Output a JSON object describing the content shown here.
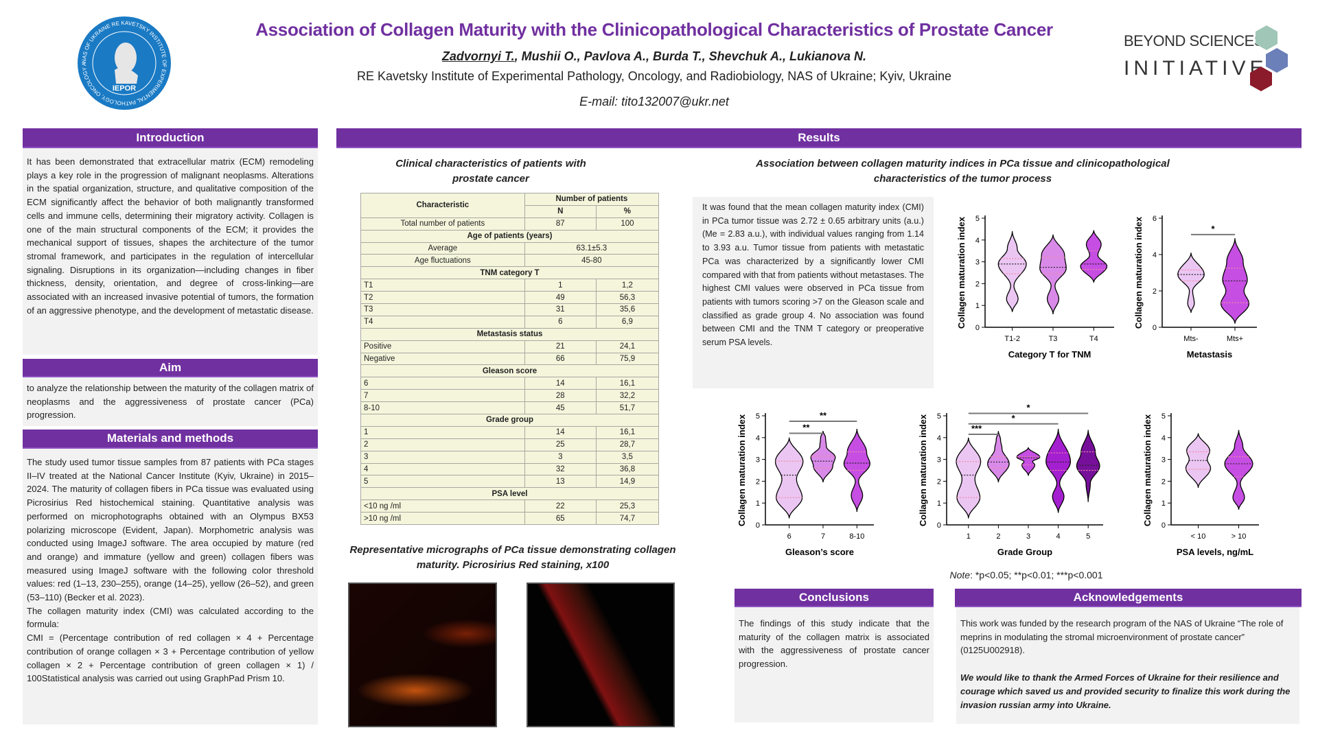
{
  "header": {
    "title": "Association of Collagen Maturity with the Clinicopathological Characteristics of Prostate Cancer",
    "first_author": "Zadvornyi T.",
    "other_authors": ", Mushii O., Pavlova A., Burda T., Shevchuk A., Lukianova N.",
    "affiliation": "RE Kavetsky Institute of Experimental Pathology, Oncology, and Radiobiology,  NAS of Ukraine; Kyiv, Ukraine",
    "email": "E-mail: tito132007@ukr.net",
    "left_logo_text": "NAS OF UKRAINE RE KAVETSKY INSTITUTE OF EXPERIMENTAL PATHOLOGY, ONCOLOGY AND RADIOBIOLOGY",
    "left_logo_abbr": "IEPOR",
    "right_logo_line1": "BEYOND SCIENCES",
    "right_logo_line2": "INITIATIVE"
  },
  "introduction": {
    "title": "Introduction",
    "text": "It has been demonstrated that extracellular matrix (ECM) remodeling plays a key role in the progression of malignant neoplasms. Alterations in the spatial organization, structure, and qualitative composition of the ECM significantly affect the behavior of both malignantly transformed cells and immune cells, determining their migratory activity. Collagen is one of the main structural components of the ECM; it provides the mechanical support of tissues, shapes the architecture of the tumor stromal framework, and participates in the regulation of intercellular signaling. Disruptions in its organization—including changes in fiber thickness, density, orientation, and degree of cross-linking—are associated with an increased invasive potential of tumors, the formation of an aggressive phenotype, and the development of metastatic disease."
  },
  "aim": {
    "title": "Aim",
    "text": "to analyze the relationship between the maturity of the collagen matrix of neoplasms and the aggressiveness of prostate cancer (PCa) progression."
  },
  "methods": {
    "title": "Materials and methods",
    "p1": "The study used tumor tissue samples from 87 patients with PCa stages II–IV treated at the National Cancer Institute (Kyiv, Ukraine) in 2015–2024. The maturity of collagen fibers in PCa tissue was evaluated using Picrosirius Red histochemical staining. Quantitative analysis was performed on microphotographs obtained with an Olympus BX53 polarizing microscope (Evident, Japan). Morphometric analysis was conducted using ImageJ software. The area occupied by mature (red and orange) and immature (yellow and green) collagen fibers was measured using ImageJ software with the following color threshold values: red (1–13, 230–255), orange (14–25), yellow (26–52), and green (53–110) (Becker et al. 2023).",
    "p2": "The collagen maturity index (CMI) was calculated according to the formula:",
    "p3": "CMI = (Percentage contribution of red collagen × 4 + Percentage contribution of orange collagen × 3 + Percentage contribution of yellow collagen × 2 + Percentage contribution of green collagen × 1) / 100Statistical analysis was carried out using GraphPad Prism 10."
  },
  "results": {
    "title": "Results",
    "table_caption": "Clinical characteristics of patients with prostate cancer",
    "table": {
      "col_char": "Characteristic",
      "col_group": "Number of patients",
      "col_n": "N",
      "col_pct": "%",
      "total": {
        "label": "Total number of patients",
        "n": "87",
        "pct": "100"
      },
      "age": {
        "title": "Age of patients (years)",
        "avg_label": "Average",
        "avg": "63.1±5.3",
        "range_label": "Age fluctuations",
        "range": "45-80"
      },
      "sections": [
        {
          "title": "TNM category T",
          "rows": [
            [
              "T1",
              "1",
              "1,2"
            ],
            [
              "T2",
              "49",
              "56,3"
            ],
            [
              "T3",
              "31",
              "35,6"
            ],
            [
              "T4",
              "6",
              "6,9"
            ]
          ]
        },
        {
          "title": "Metastasis status",
          "rows": [
            [
              "Positive",
              "21",
              "24,1"
            ],
            [
              "Negative",
              "66",
              "75,9"
            ]
          ]
        },
        {
          "title": "Gleason score",
          "rows": [
            [
              "6",
              "14",
              "16,1"
            ],
            [
              "7",
              "28",
              "32,2"
            ],
            [
              "8-10",
              "45",
              "51,7"
            ]
          ]
        },
        {
          "title": "Grade group",
          "rows": [
            [
              "1",
              "14",
              "16,1"
            ],
            [
              "2",
              "25",
              "28,7"
            ],
            [
              "3",
              "3",
              "3,5"
            ],
            [
              "4",
              "32",
              "36,8"
            ],
            [
              "5",
              "13",
              "14,9"
            ]
          ]
        },
        {
          "title": "PSA level",
          "rows": [
            [
              "<10 ng /ml",
              "22",
              "25,3"
            ],
            [
              ">10 ng /ml",
              "65",
              "74,7"
            ]
          ]
        }
      ]
    },
    "micro_caption": "Representative micrographs of PCa tissue demonstrating  collagen maturity. Picrosirius Red staining, x100",
    "assoc_title": "Association between collagen maturity indices in PCa tissue and clinicopathological characteristics of the tumor process",
    "assoc_text": "It was found that the mean collagen maturity index (CMI) in PCa tumor tissue was 2.72 ± 0.65 arbitrary units (a.u.) (Me = 2.83 a.u.), with individual values ranging from 1.14 to 3.93 a.u. Tumor tissue from patients with metastatic PCa was characterized by a significantly lower CMI compared with that from patients without metastases. The highest CMI values were observed in PCa tissue from patients with tumors scoring >7 on the Gleason scale and classified as grade group 4. No association was found between CMI and the TNM T category or preoperative serum PSA levels.",
    "note_label": "Note",
    "note_text": ": *p<0.05; **p<0.01; ***p<0.001"
  },
  "conclusions": {
    "title": "Conclusions",
    "text": "The findings of this study indicate that the maturity of the collagen matrix is associated with the aggressiveness of prostate cancer progression."
  },
  "acknowledgements": {
    "title": "Acknowledgements",
    "text": "This work was funded by the research program of the NAS of Ukraine “The role of meprins in modulating the stromal microenvironment of prostate cancer” (0125U002918).",
    "thanks": "We would like to thank the Armed Forces of Ukraine for their resilience and courage which saved us and provided security to finalize this work during the  invasion russian army into Ukraine."
  },
  "colors": {
    "purple": "#7030a0",
    "v1": "#ebc6f3",
    "v2": "#d98ae9",
    "v3": "#c64ee3",
    "v4": "#a41fcf",
    "v5": "#76109a"
  },
  "chart_data": [
    {
      "type": "violin",
      "id": "tnm",
      "ylabel": "Collagen maturation index",
      "xlabel": "Category T for TNM",
      "ylim": [
        0,
        5
      ],
      "yticks": [
        0,
        1,
        2,
        3,
        4,
        5
      ],
      "groups": [
        {
          "name": "T1-2",
          "min": 0.7,
          "max": 4.4,
          "median": 2.9,
          "q1": 2.45,
          "q3": 3.15,
          "color": "v1",
          "density": [
            [
              0.7,
              0
            ],
            [
              1.3,
              0.35
            ],
            [
              1.9,
              0.1
            ],
            [
              2.9,
              0.85
            ],
            [
              3.6,
              0.3
            ],
            [
              4.4,
              0
            ]
          ]
        },
        {
          "name": "T3",
          "min": 0.6,
          "max": 4.25,
          "median": 2.75,
          "q1": 2.45,
          "q3": 3.2,
          "color": "v2",
          "density": [
            [
              0.6,
              0
            ],
            [
              1.3,
              0.35
            ],
            [
              1.9,
              0.12
            ],
            [
              2.7,
              0.8
            ],
            [
              3.3,
              0.7
            ],
            [
              4.25,
              0
            ]
          ]
        },
        {
          "name": "T4",
          "min": 2.05,
          "max": 4.45,
          "median": 2.9,
          "q1": 2.65,
          "q3": 3.5,
          "color": "v3",
          "density": [
            [
              2.05,
              0
            ],
            [
              2.8,
              0.8
            ],
            [
              3.3,
              0.25
            ],
            [
              3.8,
              0.45
            ],
            [
              4.45,
              0
            ]
          ]
        }
      ],
      "significance": []
    },
    {
      "type": "violin",
      "id": "mts",
      "ylabel": "Collagen maturation index",
      "xlabel": "Metastasis",
      "ylim": [
        0,
        6
      ],
      "yticks": [
        0,
        2,
        4,
        6
      ],
      "groups": [
        {
          "name": "Mts-",
          "min": 0.8,
          "max": 4.1,
          "median": 2.9,
          "q1": 2.55,
          "q3": 3.15,
          "color": "v1",
          "density": [
            [
              0.8,
              0
            ],
            [
              1.3,
              0.2
            ],
            [
              2.0,
              0.1
            ],
            [
              2.9,
              0.8
            ],
            [
              4.1,
              0
            ]
          ]
        },
        {
          "name": "Mts+",
          "min": 0.2,
          "max": 4.9,
          "median": 2.55,
          "q1": 1.35,
          "q3": 3.25,
          "color": "v3",
          "density": [
            [
              0.2,
              0
            ],
            [
              1.3,
              0.85
            ],
            [
              2.0,
              0.55
            ],
            [
              2.6,
              0.75
            ],
            [
              3.6,
              0.5
            ],
            [
              4.9,
              0
            ]
          ]
        }
      ],
      "significance": [
        {
          "from": 0,
          "to": 1,
          "label": "*"
        }
      ]
    },
    {
      "type": "violin",
      "id": "gleason",
      "ylabel": "Collagen maturation index",
      "xlabel": "Gleason’s score",
      "ylim": [
        0,
        5
      ],
      "yticks": [
        0,
        1,
        2,
        3,
        4,
        5
      ],
      "groups": [
        {
          "name": "6",
          "min": 0.3,
          "max": 4.0,
          "median": 2.28,
          "q1": 1.25,
          "q3": 2.92,
          "color": "v1",
          "density": [
            [
              0.3,
              0
            ],
            [
              1.25,
              0.8
            ],
            [
              2.1,
              0.45
            ],
            [
              2.9,
              0.85
            ],
            [
              4.0,
              0
            ]
          ]
        },
        {
          "name": "7",
          "min": 1.95,
          "max": 4.3,
          "median": 2.92,
          "q1": 2.6,
          "q3": 3.15,
          "color": "v2",
          "density": [
            [
              1.95,
              0
            ],
            [
              2.7,
              0.6
            ],
            [
              3.1,
              0.75
            ],
            [
              3.6,
              0.2
            ],
            [
              4.0,
              0.15
            ],
            [
              4.3,
              0
            ]
          ]
        },
        {
          "name": "8-10",
          "min": 0.6,
          "max": 4.4,
          "median": 2.83,
          "q1": 2.5,
          "q3": 3.35,
          "color": "v3",
          "density": [
            [
              0.6,
              0
            ],
            [
              1.35,
              0.35
            ],
            [
              2.0,
              0.1
            ],
            [
              2.8,
              0.8
            ],
            [
              3.3,
              0.6
            ],
            [
              4.4,
              0
            ]
          ]
        }
      ],
      "significance": [
        {
          "from": 0,
          "to": 1,
          "label": "**"
        },
        {
          "from": 0,
          "to": 2,
          "label": "**"
        }
      ]
    },
    {
      "type": "violin",
      "id": "grade",
      "ylabel": "Collagen maturation index",
      "xlabel": "Grade Group",
      "ylim": [
        0,
        5
      ],
      "yticks": [
        0,
        1,
        2,
        3,
        4,
        5
      ],
      "groups": [
        {
          "name": "1",
          "min": 0.3,
          "max": 4.0,
          "median": 2.28,
          "q1": 1.25,
          "q3": 2.9,
          "color": "v1",
          "density": [
            [
              0.3,
              0
            ],
            [
              1.25,
              0.8
            ],
            [
              2.1,
              0.45
            ],
            [
              2.9,
              0.85
            ],
            [
              4.0,
              0
            ]
          ]
        },
        {
          "name": "2",
          "min": 1.95,
          "max": 4.3,
          "median": 2.88,
          "q1": 2.6,
          "q3": 3.12,
          "color": "v2",
          "density": [
            [
              1.95,
              0
            ],
            [
              2.8,
              0.75
            ],
            [
              3.5,
              0.25
            ],
            [
              3.9,
              0.15
            ],
            [
              4.3,
              0
            ]
          ]
        },
        {
          "name": "3",
          "min": 2.25,
          "max": 3.55,
          "median": 3.08,
          "q1": 2.75,
          "q3": 3.12,
          "color": "v3",
          "density": [
            [
              2.25,
              0
            ],
            [
              2.75,
              0.45
            ],
            [
              2.9,
              0.3
            ],
            [
              3.1,
              0.8
            ],
            [
              3.55,
              0
            ]
          ]
        },
        {
          "name": "4",
          "min": 0.55,
          "max": 4.4,
          "median": 2.88,
          "q1": 2.5,
          "q3": 3.3,
          "color": "v4",
          "density": [
            [
              0.55,
              0
            ],
            [
              1.3,
              0.4
            ],
            [
              1.9,
              0.1
            ],
            [
              2.9,
              0.85
            ],
            [
              4.4,
              0
            ]
          ]
        },
        {
          "name": "5",
          "min": 1.05,
          "max": 4.35,
          "median": 2.73,
          "q1": 2.5,
          "q3": 3.35,
          "color": "v5",
          "density": [
            [
              1.05,
              0
            ],
            [
              1.9,
              0.15
            ],
            [
              2.7,
              0.8
            ],
            [
              3.3,
              0.5
            ],
            [
              4.35,
              0
            ]
          ]
        }
      ],
      "significance": [
        {
          "from": 0,
          "to": 1,
          "label": "***"
        },
        {
          "from": 0,
          "to": 3,
          "label": "*"
        },
        {
          "from": 0,
          "to": 4,
          "label": "*"
        }
      ]
    },
    {
      "type": "violin",
      "id": "psa",
      "ylabel": "Collagen maturation index",
      "xlabel": "PSA levels, ng/mL",
      "ylim": [
        0,
        5
      ],
      "yticks": [
        0,
        1,
        2,
        3,
        4,
        5
      ],
      "groups": [
        {
          "name": "< 10",
          "min": 1.7,
          "max": 4.2,
          "median": 2.95,
          "q1": 2.55,
          "q3": 3.35,
          "color": "v1",
          "density": [
            [
              1.7,
              0
            ],
            [
              2.6,
              0.75
            ],
            [
              3.0,
              0.55
            ],
            [
              3.4,
              0.7
            ],
            [
              4.2,
              0
            ]
          ]
        },
        {
          "name": "> 10",
          "min": 0.7,
          "max": 4.35,
          "median": 2.8,
          "q1": 2.2,
          "q3": 3.12,
          "color": "v3",
          "density": [
            [
              0.7,
              0
            ],
            [
              1.25,
              0.35
            ],
            [
              1.9,
              0.1
            ],
            [
              2.8,
              0.85
            ],
            [
              3.6,
              0.25
            ],
            [
              4.35,
              0
            ]
          ]
        }
      ],
      "significance": []
    }
  ]
}
